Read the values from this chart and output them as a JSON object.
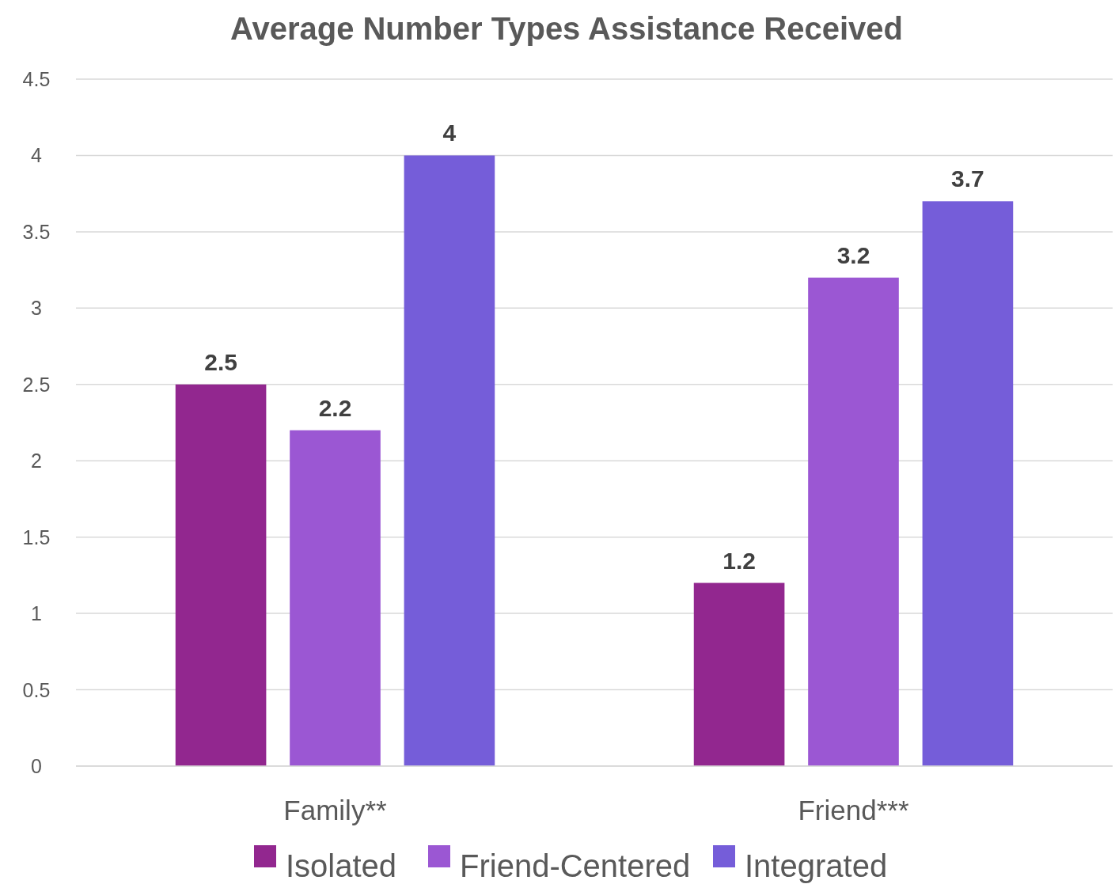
{
  "chart_data": {
    "type": "bar",
    "title": "Average Number Types Assistance Received",
    "categories": [
      "Family**",
      "Friend***"
    ],
    "series": [
      {
        "name": "Isolated",
        "color": "#92278f",
        "values": [
          2.5,
          1.2
        ]
      },
      {
        "name": "Friend-Centered",
        "color": "#9b57d3",
        "values": [
          2.2,
          3.2
        ]
      },
      {
        "name": "Integrated",
        "color": "#755dd9",
        "values": [
          4,
          3.7
        ]
      }
    ],
    "ylim": [
      0,
      4.5
    ],
    "yticks": [
      0,
      0.5,
      1,
      1.5,
      2,
      2.5,
      3,
      3.5,
      4,
      4.5
    ],
    "grid": "y",
    "legend": "bottom",
    "data_labels": true
  }
}
